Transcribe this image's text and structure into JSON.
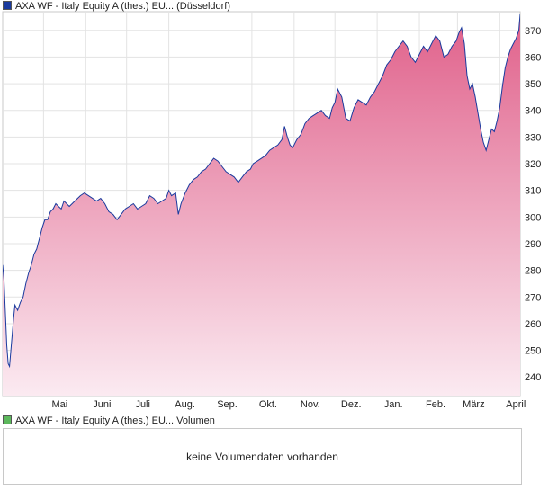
{
  "legend_main": {
    "label": "AXA WF - Italy Equity A (thes.) EU... (Düsseldorf)",
    "color": "#1a3a9e"
  },
  "legend_volume": {
    "label": "AXA WF - Italy Equity A (thes.) EU... Volumen",
    "color": "#5cb85c"
  },
  "volume": {
    "message": "keine Volumendaten vorhanden"
  },
  "chart_data": {
    "type": "area",
    "title": "",
    "xlabel": "",
    "ylabel": "",
    "ylim": [
      233,
      377
    ],
    "yticks": [
      240,
      250,
      260,
      270,
      280,
      290,
      300,
      310,
      320,
      330,
      340,
      350,
      360,
      370
    ],
    "xlim": [
      "2020-04-01",
      "2021-04-16"
    ],
    "xticks": [
      {
        "label": "Mai",
        "date": "2020-05-01"
      },
      {
        "label": "Juni",
        "date": "2020-06-01"
      },
      {
        "label": "Juli",
        "date": "2020-07-01"
      },
      {
        "label": "Aug.",
        "date": "2020-08-01"
      },
      {
        "label": "Sep.",
        "date": "2020-09-01"
      },
      {
        "label": "Okt.",
        "date": "2020-10-01"
      },
      {
        "label": "Nov.",
        "date": "2020-11-01"
      },
      {
        "label": "Dez.",
        "date": "2020-12-01"
      },
      {
        "label": "Jan.",
        "date": "2021-01-01"
      },
      {
        "label": "Feb.",
        "date": "2021-02-01"
      },
      {
        "label": "März",
        "date": "2021-03-01"
      },
      {
        "label": "April",
        "date": "2021-04-01"
      }
    ],
    "grid": true,
    "line_color": "#1a3a9e",
    "fill_top_color": "#e0608a",
    "fill_bottom_color": "#fbeaf1",
    "series": [
      {
        "points": [
          [
            "2020-04-01",
            282
          ],
          [
            "2020-04-02",
            276
          ],
          [
            "2020-04-03",
            264
          ],
          [
            "2020-04-04",
            252
          ],
          [
            "2020-04-05",
            245
          ],
          [
            "2020-04-06",
            244
          ],
          [
            "2020-04-07",
            250
          ],
          [
            "2020-04-08",
            256
          ],
          [
            "2020-04-09",
            262
          ],
          [
            "2020-04-10",
            267
          ],
          [
            "2020-04-12",
            265
          ],
          [
            "2020-04-14",
            268
          ],
          [
            "2020-04-16",
            270
          ],
          [
            "2020-04-18",
            275
          ],
          [
            "2020-04-20",
            279
          ],
          [
            "2020-04-22",
            282
          ],
          [
            "2020-04-24",
            286
          ],
          [
            "2020-04-26",
            288
          ],
          [
            "2020-04-28",
            292
          ],
          [
            "2020-04-30",
            296
          ],
          [
            "2020-05-02",
            299
          ],
          [
            "2020-05-04",
            299
          ],
          [
            "2020-05-06",
            302
          ],
          [
            "2020-05-08",
            303
          ],
          [
            "2020-05-10",
            305
          ],
          [
            "2020-05-12",
            304
          ],
          [
            "2020-05-14",
            303
          ],
          [
            "2020-05-16",
            306
          ],
          [
            "2020-05-18",
            305
          ],
          [
            "2020-05-20",
            304
          ],
          [
            "2020-05-22",
            305
          ],
          [
            "2020-05-24",
            306
          ],
          [
            "2020-05-26",
            307
          ],
          [
            "2020-05-28",
            308
          ],
          [
            "2020-05-31",
            309
          ],
          [
            "2020-06-03",
            308
          ],
          [
            "2020-06-06",
            307
          ],
          [
            "2020-06-09",
            306
          ],
          [
            "2020-06-12",
            307
          ],
          [
            "2020-06-15",
            305
          ],
          [
            "2020-06-18",
            302
          ],
          [
            "2020-06-21",
            301
          ],
          [
            "2020-06-24",
            299
          ],
          [
            "2020-06-27",
            301
          ],
          [
            "2020-06-30",
            303
          ],
          [
            "2020-07-03",
            304
          ],
          [
            "2020-07-06",
            305
          ],
          [
            "2020-07-09",
            303
          ],
          [
            "2020-07-12",
            304
          ],
          [
            "2020-07-15",
            305
          ],
          [
            "2020-07-18",
            308
          ],
          [
            "2020-07-21",
            307
          ],
          [
            "2020-07-24",
            305
          ],
          [
            "2020-07-27",
            306
          ],
          [
            "2020-07-30",
            307
          ],
          [
            "2020-08-01",
            310
          ],
          [
            "2020-08-03",
            308
          ],
          [
            "2020-08-06",
            309
          ],
          [
            "2020-08-08",
            301
          ],
          [
            "2020-08-10",
            305
          ],
          [
            "2020-08-13",
            309
          ],
          [
            "2020-08-16",
            312
          ],
          [
            "2020-08-19",
            314
          ],
          [
            "2020-08-22",
            315
          ],
          [
            "2020-08-25",
            317
          ],
          [
            "2020-08-28",
            318
          ],
          [
            "2020-08-31",
            320
          ],
          [
            "2020-09-03",
            322
          ],
          [
            "2020-09-06",
            321
          ],
          [
            "2020-09-09",
            319
          ],
          [
            "2020-09-12",
            317
          ],
          [
            "2020-09-15",
            316
          ],
          [
            "2020-09-18",
            315
          ],
          [
            "2020-09-21",
            313
          ],
          [
            "2020-09-24",
            315
          ],
          [
            "2020-09-27",
            317
          ],
          [
            "2020-09-30",
            318
          ],
          [
            "2020-10-02",
            320
          ],
          [
            "2020-10-05",
            321
          ],
          [
            "2020-10-08",
            322
          ],
          [
            "2020-10-11",
            323
          ],
          [
            "2020-10-14",
            325
          ],
          [
            "2020-10-17",
            326
          ],
          [
            "2020-10-20",
            327
          ],
          [
            "2020-10-23",
            329
          ],
          [
            "2020-10-25",
            334
          ],
          [
            "2020-10-27",
            330
          ],
          [
            "2020-10-29",
            327
          ],
          [
            "2020-10-31",
            326
          ],
          [
            "2020-11-03",
            329
          ],
          [
            "2020-11-06",
            331
          ],
          [
            "2020-11-09",
            335
          ],
          [
            "2020-11-12",
            337
          ],
          [
            "2020-11-15",
            338
          ],
          [
            "2020-11-18",
            339
          ],
          [
            "2020-11-21",
            340
          ],
          [
            "2020-11-24",
            338
          ],
          [
            "2020-11-27",
            337
          ],
          [
            "2020-11-29",
            341
          ],
          [
            "2020-12-01",
            343
          ],
          [
            "2020-12-03",
            348
          ],
          [
            "2020-12-06",
            345
          ],
          [
            "2020-12-09",
            337
          ],
          [
            "2020-12-12",
            336
          ],
          [
            "2020-12-15",
            341
          ],
          [
            "2020-12-18",
            344
          ],
          [
            "2020-12-21",
            343
          ],
          [
            "2020-12-24",
            342
          ],
          [
            "2020-12-27",
            345
          ],
          [
            "2020-12-30",
            347
          ],
          [
            "2021-01-02",
            350
          ],
          [
            "2021-01-05",
            353
          ],
          [
            "2021-01-08",
            357
          ],
          [
            "2021-01-11",
            359
          ],
          [
            "2021-01-14",
            362
          ],
          [
            "2021-01-17",
            364
          ],
          [
            "2021-01-20",
            366
          ],
          [
            "2021-01-23",
            364
          ],
          [
            "2021-01-26",
            360
          ],
          [
            "2021-01-29",
            358
          ],
          [
            "2021-02-01",
            361
          ],
          [
            "2021-02-04",
            364
          ],
          [
            "2021-02-07",
            362
          ],
          [
            "2021-02-10",
            365
          ],
          [
            "2021-02-13",
            368
          ],
          [
            "2021-02-16",
            366
          ],
          [
            "2021-02-19",
            360
          ],
          [
            "2021-02-22",
            361
          ],
          [
            "2021-02-25",
            364
          ],
          [
            "2021-02-28",
            366
          ],
          [
            "2021-03-02",
            369
          ],
          [
            "2021-03-04",
            371
          ],
          [
            "2021-03-06",
            365
          ],
          [
            "2021-03-08",
            353
          ],
          [
            "2021-03-10",
            348
          ],
          [
            "2021-03-12",
            350
          ],
          [
            "2021-03-14",
            345
          ],
          [
            "2021-03-16",
            339
          ],
          [
            "2021-03-18",
            333
          ],
          [
            "2021-03-20",
            328
          ],
          [
            "2021-03-22",
            325
          ],
          [
            "2021-03-24",
            329
          ],
          [
            "2021-03-26",
            333
          ],
          [
            "2021-03-28",
            332
          ],
          [
            "2021-03-30",
            336
          ],
          [
            "2021-04-01",
            341
          ],
          [
            "2021-04-03",
            349
          ],
          [
            "2021-04-05",
            356
          ],
          [
            "2021-04-07",
            360
          ],
          [
            "2021-04-09",
            363
          ],
          [
            "2021-04-11",
            365
          ],
          [
            "2021-04-13",
            367
          ],
          [
            "2021-04-15",
            370
          ],
          [
            "2021-04-16",
            376
          ]
        ]
      }
    ]
  }
}
